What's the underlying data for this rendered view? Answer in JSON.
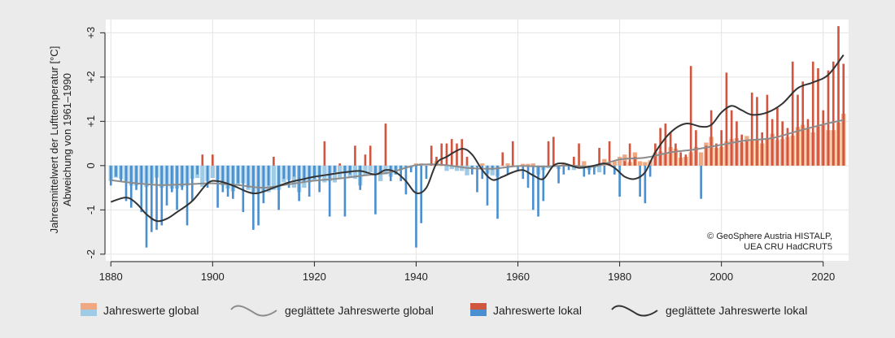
{
  "chart_data": {
    "type": "bar",
    "ylabel_line1": "Jahresmittelwert der Lufttemperatur [°C]",
    "ylabel_line2": "Abweichung von 1961–1990",
    "xlim": [
      1879,
      2025
    ],
    "ylim": [
      -2.15,
      3.3
    ],
    "x_ticks": [
      1880,
      1900,
      1920,
      1940,
      1960,
      1980,
      2000,
      2020
    ],
    "y_ticks": [
      {
        "value": 3,
        "label": "+3"
      },
      {
        "value": 2,
        "label": "+2"
      },
      {
        "value": 1,
        "label": "+1"
      },
      {
        "value": 0,
        "label": "0"
      },
      {
        "value": -1,
        "label": "-1"
      },
      {
        "value": -2,
        "label": "-2"
      }
    ],
    "grid": true,
    "attribution_line1": "© GeoSphere Austria HISTALP,",
    "attribution_line2": "UEA CRU HadCRUT5",
    "colors": {
      "global_positive": "#f0a882",
      "global_negative": "#9fcbe6",
      "local_positive": "#d1553f",
      "local_negative": "#4a8fcf",
      "global_line": "#8c8c8c",
      "local_line": "#333333"
    },
    "legend": [
      {
        "label": "Jahreswerte global",
        "kind": "bars-global"
      },
      {
        "label": "geglättete Jahreswerte global",
        "kind": "line-global"
      },
      {
        "label": "Jahreswerte lokal",
        "kind": "bars-local"
      },
      {
        "label": "geglättete Jahreswerte lokal",
        "kind": "line-local"
      }
    ],
    "x": [
      1880,
      1881,
      1882,
      1883,
      1884,
      1885,
      1886,
      1887,
      1888,
      1889,
      1890,
      1891,
      1892,
      1893,
      1894,
      1895,
      1896,
      1897,
      1898,
      1899,
      1900,
      1901,
      1902,
      1903,
      1904,
      1905,
      1906,
      1907,
      1908,
      1909,
      1910,
      1911,
      1912,
      1913,
      1914,
      1915,
      1916,
      1917,
      1918,
      1919,
      1920,
      1921,
      1922,
      1923,
      1924,
      1925,
      1926,
      1927,
      1928,
      1929,
      1930,
      1931,
      1932,
      1933,
      1934,
      1935,
      1936,
      1937,
      1938,
      1939,
      1940,
      1941,
      1942,
      1943,
      1944,
      1945,
      1946,
      1947,
      1948,
      1949,
      1950,
      1951,
      1952,
      1953,
      1954,
      1955,
      1956,
      1957,
      1958,
      1959,
      1960,
      1961,
      1962,
      1963,
      1964,
      1965,
      1966,
      1967,
      1968,
      1969,
      1970,
      1971,
      1972,
      1973,
      1974,
      1975,
      1976,
      1977,
      1978,
      1979,
      1980,
      1981,
      1982,
      1983,
      1984,
      1985,
      1986,
      1987,
      1988,
      1989,
      1990,
      1991,
      1992,
      1993,
      1994,
      1995,
      1996,
      1997,
      1998,
      1999,
      2000,
      2001,
      2002,
      2003,
      2004,
      2005,
      2006,
      2007,
      2008,
      2009,
      2010,
      2011,
      2012,
      2013,
      2014,
      2015,
      2016,
      2017,
      2018,
      2019,
      2020,
      2021,
      2022,
      2023,
      2024
    ],
    "series": [
      {
        "name": "Jahreswerte global",
        "values": [
          -0.35,
          -0.27,
          -0.3,
          -0.35,
          -0.45,
          -0.45,
          -0.42,
          -0.48,
          -0.4,
          -0.27,
          -0.5,
          -0.45,
          -0.52,
          -0.52,
          -0.48,
          -0.45,
          -0.3,
          -0.28,
          -0.48,
          -0.35,
          -0.28,
          -0.32,
          -0.45,
          -0.52,
          -0.58,
          -0.45,
          -0.4,
          -0.55,
          -0.6,
          -0.62,
          -0.6,
          -0.6,
          -0.55,
          -0.55,
          -0.38,
          -0.32,
          -0.5,
          -0.6,
          -0.5,
          -0.38,
          -0.35,
          -0.28,
          -0.38,
          -0.35,
          -0.38,
          -0.3,
          -0.18,
          -0.28,
          -0.3,
          -0.45,
          -0.22,
          -0.15,
          -0.2,
          -0.35,
          -0.2,
          -0.25,
          -0.2,
          -0.1,
          -0.05,
          -0.05,
          0.05,
          0.05,
          0.0,
          0.02,
          0.1,
          0.0,
          -0.12,
          -0.08,
          -0.12,
          -0.12,
          -0.22,
          -0.08,
          -0.02,
          0.05,
          -0.18,
          -0.22,
          -0.25,
          0.0,
          0.05,
          0.0,
          -0.02,
          0.04,
          0.04,
          0.05,
          -0.2,
          -0.1,
          -0.06,
          -0.02,
          -0.08,
          0.05,
          0.02,
          -0.1,
          0.0,
          0.1,
          -0.1,
          -0.05,
          -0.15,
          0.15,
          0.05,
          0.1,
          0.2,
          0.25,
          0.08,
          0.3,
          0.1,
          0.08,
          0.12,
          0.3,
          0.32,
          0.28,
          0.42,
          0.38,
          0.18,
          0.2,
          0.3,
          0.42,
          0.3,
          0.52,
          0.65,
          0.4,
          0.42,
          0.55,
          0.6,
          0.62,
          0.52,
          0.67,
          0.6,
          0.6,
          0.5,
          0.62,
          0.72,
          0.58,
          0.6,
          0.65,
          0.68,
          0.87,
          0.92,
          0.83,
          0.75,
          0.88,
          0.92,
          0.8,
          0.8,
          0.97,
          1.17
        ]
      },
      {
        "name": "Jahreswerte lokal",
        "values": [
          -0.45,
          -0.25,
          -0.35,
          -0.8,
          -0.95,
          -0.55,
          -1.05,
          -1.85,
          -1.5,
          -1.45,
          -1.35,
          -0.9,
          -0.6,
          -1.0,
          -0.55,
          -1.35,
          -0.8,
          -0.2,
          0.25,
          -0.5,
          0.25,
          -0.95,
          -0.6,
          -0.7,
          -0.75,
          -0.4,
          -1.05,
          -0.5,
          -1.45,
          -1.35,
          -0.85,
          -0.45,
          0.2,
          -1.0,
          -0.3,
          -0.5,
          -0.25,
          -0.8,
          -0.35,
          -0.7,
          -0.3,
          -0.6,
          0.55,
          -1.15,
          -0.15,
          0.05,
          -1.15,
          -0.2,
          0.45,
          -0.55,
          0.25,
          0.45,
          -1.1,
          -0.15,
          0.95,
          -0.35,
          -0.2,
          -0.35,
          -0.65,
          -0.15,
          -1.85,
          -1.3,
          -0.3,
          0.45,
          0.2,
          0.5,
          0.5,
          0.6,
          0.5,
          0.6,
          0.2,
          -0.2,
          -0.6,
          -0.3,
          -0.9,
          -0.1,
          -1.2,
          0.3,
          -0.2,
          0.55,
          -0.1,
          -0.3,
          -0.5,
          -1.0,
          -1.15,
          -0.8,
          0.55,
          0.65,
          -0.4,
          -0.2,
          -0.1,
          0.2,
          0.5,
          -0.25,
          -0.2,
          -0.2,
          0.4,
          -0.2,
          0.55,
          -0.2,
          -0.7,
          0.1,
          0.5,
          0.2,
          -0.7,
          -0.85,
          -0.25,
          0.5,
          0.85,
          0.95,
          0.75,
          0.5,
          0.3,
          0.25,
          2.25,
          0.8,
          -0.75,
          0.45,
          1.25,
          0.5,
          0.8,
          2.1,
          1.25,
          1.0,
          0.7,
          0.55,
          1.65,
          1.55,
          0.75,
          1.6,
          1.05,
          1.3,
          1.0,
          0.85,
          2.35,
          1.6,
          1.9,
          1.05,
          2.35,
          2.2,
          1.25,
          2.15,
          2.35,
          3.15,
          2.3
        ]
      }
    ],
    "smoothed_global": [
      [
        1880,
        -0.33
      ],
      [
        1885,
        -0.4
      ],
      [
        1890,
        -0.44
      ],
      [
        1895,
        -0.42
      ],
      [
        1900,
        -0.4
      ],
      [
        1905,
        -0.44
      ],
      [
        1910,
        -0.5
      ],
      [
        1915,
        -0.42
      ],
      [
        1920,
        -0.34
      ],
      [
        1925,
        -0.29
      ],
      [
        1930,
        -0.22
      ],
      [
        1935,
        -0.15
      ],
      [
        1940,
        0.01
      ],
      [
        1945,
        0.02
      ],
      [
        1950,
        -0.05
      ],
      [
        1955,
        -0.07
      ],
      [
        1960,
        -0.01
      ],
      [
        1965,
        -0.02
      ],
      [
        1970,
        0.0
      ],
      [
        1975,
        -0.02
      ],
      [
        1980,
        0.14
      ],
      [
        1985,
        0.18
      ],
      [
        1990,
        0.3
      ],
      [
        1995,
        0.37
      ],
      [
        2000,
        0.47
      ],
      [
        2005,
        0.57
      ],
      [
        2010,
        0.62
      ],
      [
        2015,
        0.78
      ],
      [
        2020,
        0.93
      ],
      [
        2024,
        1.03
      ]
    ],
    "smoothed_local": [
      [
        1880,
        -0.82
      ],
      [
        1883,
        -0.72
      ],
      [
        1885,
        -0.85
      ],
      [
        1887,
        -1.1
      ],
      [
        1889,
        -1.25
      ],
      [
        1891,
        -1.2
      ],
      [
        1893,
        -1.05
      ],
      [
        1896,
        -0.8
      ],
      [
        1899,
        -0.4
      ],
      [
        1901,
        -0.35
      ],
      [
        1904,
        -0.45
      ],
      [
        1907,
        -0.6
      ],
      [
        1909,
        -0.62
      ],
      [
        1912,
        -0.5
      ],
      [
        1915,
        -0.38
      ],
      [
        1918,
        -0.3
      ],
      [
        1920,
        -0.25
      ],
      [
        1923,
        -0.2
      ],
      [
        1926,
        -0.15
      ],
      [
        1929,
        -0.12
      ],
      [
        1932,
        -0.2
      ],
      [
        1934,
        -0.1
      ],
      [
        1936,
        -0.15
      ],
      [
        1938,
        -0.35
      ],
      [
        1940,
        -0.62
      ],
      [
        1942,
        -0.5
      ],
      [
        1944,
        0.05
      ],
      [
        1946,
        0.2
      ],
      [
        1949,
        0.38
      ],
      [
        1951,
        0.25
      ],
      [
        1953,
        -0.1
      ],
      [
        1955,
        -0.32
      ],
      [
        1957,
        -0.25
      ],
      [
        1959,
        -0.15
      ],
      [
        1961,
        -0.1
      ],
      [
        1963,
        -0.22
      ],
      [
        1965,
        -0.3
      ],
      [
        1967,
        0.0
      ],
      [
        1969,
        0.05
      ],
      [
        1972,
        -0.05
      ],
      [
        1975,
        0.0
      ],
      [
        1977,
        0.05
      ],
      [
        1979,
        -0.05
      ],
      [
        1981,
        -0.25
      ],
      [
        1983,
        -0.3
      ],
      [
        1985,
        -0.15
      ],
      [
        1987,
        0.3
      ],
      [
        1990,
        0.75
      ],
      [
        1993,
        0.95
      ],
      [
        1996,
        0.88
      ],
      [
        1998,
        0.92
      ],
      [
        2000,
        1.2
      ],
      [
        2002,
        1.35
      ],
      [
        2004,
        1.25
      ],
      [
        2006,
        1.15
      ],
      [
        2009,
        1.2
      ],
      [
        2012,
        1.4
      ],
      [
        2015,
        1.75
      ],
      [
        2018,
        1.88
      ],
      [
        2021,
        2.05
      ],
      [
        2024,
        2.5
      ]
    ]
  }
}
